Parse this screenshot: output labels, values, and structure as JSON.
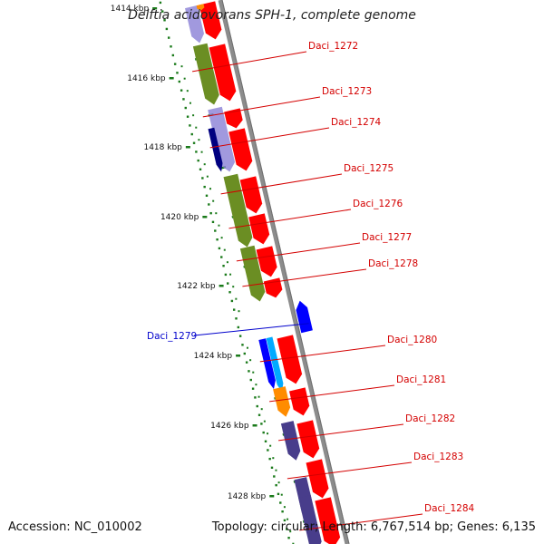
{
  "title": "Delftia acidovorans SPH-1, complete genome",
  "accession": "Accession: NC_010002",
  "summary": "Topology: circular; Length: 6,767,514 bp; Genes: 6,135",
  "colors": {
    "backbone": "#8c8c8c",
    "cds": "#ff0000",
    "label_red": "#d40000",
    "label_blue": "#0000cc",
    "tick": "#1a7a1a",
    "olive": "#6b8e23",
    "lavender": "#8a7fd6",
    "slate": "#483d8b",
    "navy": "#000080",
    "blue": "#0000ff",
    "cyan": "#00aaff",
    "orange": "#ff8c00"
  },
  "scale_labels": [
    "1414 kbp",
    "1416 kbp",
    "1418 kbp",
    "1420 kbp",
    "1422 kbp",
    "1424 kbp",
    "1426 kbp",
    "1428 kbp"
  ],
  "gene_labels": [
    "Daci_1272",
    "Daci_1273",
    "Daci_1274",
    "Daci_1275",
    "Daci_1276",
    "Daci_1277",
    "Daci_1278",
    "Daci_1279",
    "Daci_1280",
    "Daci_1281",
    "Daci_1282",
    "Daci_1283",
    "Daci_1284"
  ]
}
